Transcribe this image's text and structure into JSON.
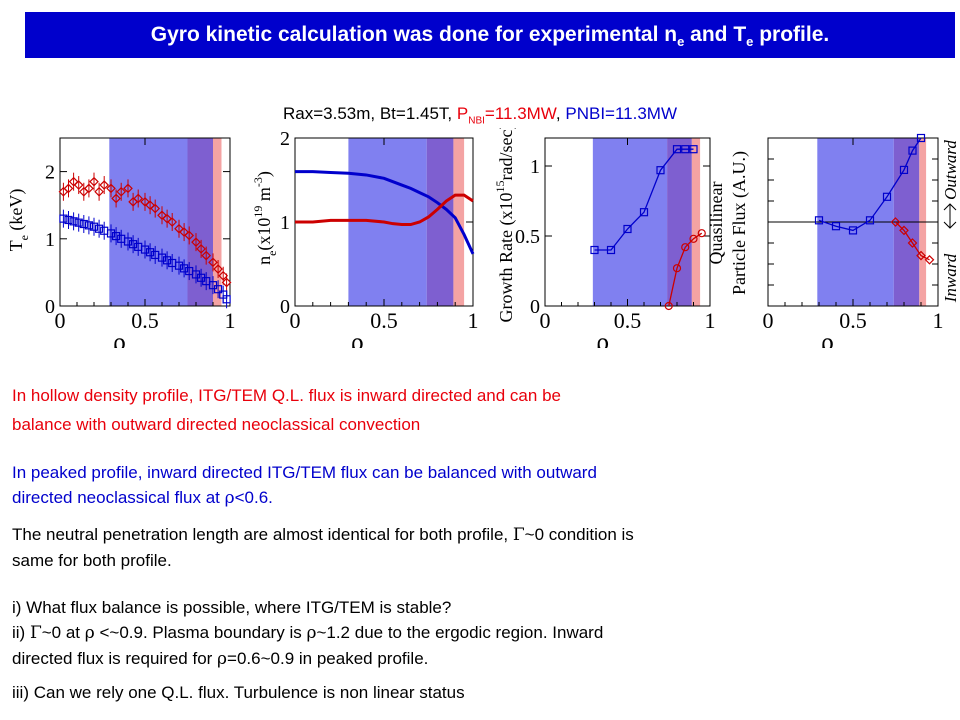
{
  "header": {
    "title_a": "Gyro kinetic calculation was done for  experimental n",
    "title_sub1": "e",
    "title_b": " and T",
    "title_sub2": "e",
    "title_c": " profile."
  },
  "subtitle": {
    "a": "Rax=3.53m, Bt=1.45T, ",
    "p": "P",
    "nbi": "NBI",
    "red_rest": "=11.3MW",
    "sep": ", ",
    "blue": "PNBI=11.3MW"
  },
  "colors": {
    "blue": "#0000cc",
    "red": "#cc0000",
    "band_blue": "#8080f0",
    "band_purple": "#7e5fd0",
    "band_pink": "#f4a3a3",
    "banner": "#0000cc"
  },
  "chart_data": [
    {
      "type": "scatter",
      "ylabel": "T",
      "ylabel_sub": "e",
      "ylabel_unit": " (keV)",
      "xlabel": "ρ",
      "xlim": [
        0,
        1
      ],
      "ylim": [
        0,
        2.5
      ],
      "xticks": [
        "0",
        "0.5",
        "1"
      ],
      "yticks": [
        "0",
        "1",
        "2"
      ],
      "series": [
        {
          "color": "#cc0000",
          "marker": "diamond",
          "x": [
            0.02,
            0.05,
            0.08,
            0.11,
            0.14,
            0.17,
            0.2,
            0.23,
            0.26,
            0.3,
            0.33,
            0.36,
            0.4,
            0.43,
            0.46,
            0.5,
            0.53,
            0.56,
            0.6,
            0.63,
            0.66,
            0.7,
            0.73,
            0.76,
            0.8,
            0.83,
            0.86,
            0.9,
            0.93,
            0.96,
            0.98
          ],
          "y": [
            1.7,
            1.75,
            1.85,
            1.8,
            1.7,
            1.75,
            1.85,
            1.7,
            1.8,
            1.75,
            1.6,
            1.7,
            1.75,
            1.55,
            1.6,
            1.55,
            1.5,
            1.45,
            1.35,
            1.3,
            1.25,
            1.15,
            1.1,
            1.05,
            0.95,
            0.85,
            0.75,
            0.65,
            0.55,
            0.45,
            0.35
          ]
        },
        {
          "color": "#0000cc",
          "marker": "square",
          "x": [
            0.02,
            0.05,
            0.08,
            0.11,
            0.14,
            0.17,
            0.2,
            0.23,
            0.26,
            0.3,
            0.33,
            0.36,
            0.4,
            0.43,
            0.46,
            0.5,
            0.53,
            0.56,
            0.6,
            0.63,
            0.66,
            0.7,
            0.73,
            0.76,
            0.8,
            0.83,
            0.86,
            0.9,
            0.93,
            0.96,
            0.98
          ],
          "y": [
            1.3,
            1.28,
            1.26,
            1.24,
            1.22,
            1.2,
            1.18,
            1.15,
            1.12,
            1.08,
            1.04,
            1.0,
            0.96,
            0.92,
            0.88,
            0.84,
            0.8,
            0.76,
            0.72,
            0.68,
            0.64,
            0.6,
            0.56,
            0.52,
            0.47,
            0.42,
            0.37,
            0.31,
            0.25,
            0.17,
            0.1
          ]
        }
      ]
    },
    {
      "type": "line",
      "ylabel": "n",
      "ylabel_sub": "e",
      "ylabel_unit": "(x10",
      "ylabel_sup": "19",
      "ylabel_unit2": " m",
      "ylabel_sup2": "-3",
      "ylabel_end": ")",
      "xlabel": "ρ",
      "xlim": [
        0,
        1
      ],
      "ylim": [
        0,
        2
      ],
      "xticks": [
        "0",
        "0.5",
        "1"
      ],
      "yticks": [
        "0",
        "1",
        "2"
      ],
      "series": [
        {
          "color": "#0000cc",
          "x": [
            0,
            0.1,
            0.2,
            0.3,
            0.4,
            0.5,
            0.55,
            0.6,
            0.65,
            0.7,
            0.75,
            0.8,
            0.85,
            0.9,
            0.95,
            1.0
          ],
          "y": [
            1.6,
            1.6,
            1.59,
            1.58,
            1.56,
            1.52,
            1.48,
            1.44,
            1.4,
            1.35,
            1.3,
            1.23,
            1.15,
            1.05,
            0.85,
            0.62
          ]
        },
        {
          "color": "#cc0000",
          "x": [
            0,
            0.1,
            0.2,
            0.3,
            0.4,
            0.5,
            0.55,
            0.6,
            0.65,
            0.7,
            0.75,
            0.8,
            0.85,
            0.9,
            0.95,
            1.0
          ],
          "y": [
            1.0,
            1.0,
            1.02,
            1.02,
            1.02,
            1.0,
            0.98,
            0.97,
            0.97,
            1.0,
            1.06,
            1.15,
            1.25,
            1.32,
            1.32,
            1.25
          ]
        }
      ]
    },
    {
      "type": "line",
      "ylabel": "Growth Rate (x10",
      "ylabel_sup": "15",
      "ylabel_end": "rad/sec)",
      "xlabel": "ρ",
      "xlim": [
        0,
        1
      ],
      "ylim": [
        0,
        1.2
      ],
      "xticks": [
        "0",
        "0.5",
        "1"
      ],
      "yticks": [
        "0",
        "0.5",
        "1"
      ],
      "series": [
        {
          "color": "#0000cc",
          "marker": "square",
          "x": [
            0.3,
            0.4,
            0.5,
            0.6,
            0.7,
            0.8,
            0.85,
            0.9
          ],
          "y": [
            0.4,
            0.4,
            0.55,
            0.67,
            0.97,
            1.12,
            1.12,
            1.12
          ]
        },
        {
          "color": "#cc0000",
          "marker": "circle",
          "x": [
            0.75,
            0.8,
            0.85,
            0.9,
            0.95
          ],
          "y": [
            0.0,
            0.27,
            0.42,
            0.48,
            0.52
          ]
        }
      ]
    },
    {
      "type": "line",
      "ylabel": "Quasilinear",
      "ylabel2": "Particle Flux (A.U.)",
      "ylabel_right_inward": "Inward",
      "ylabel_right_outward": "Outward",
      "xlabel": "ρ",
      "xlim": [
        0,
        1
      ],
      "ylim": [
        -1,
        1
      ],
      "xticks": [
        "0",
        "0.5",
        "1"
      ],
      "series": [
        {
          "color": "#0000cc",
          "marker": "square",
          "x": [
            0.3,
            0.4,
            0.5,
            0.6,
            0.7,
            0.8,
            0.85,
            0.9
          ],
          "y": [
            0.02,
            -0.05,
            -0.1,
            0.02,
            0.3,
            0.62,
            0.85,
            1.0
          ]
        },
        {
          "color": "#cc0000",
          "marker": "diamond",
          "x": [
            0.75,
            0.8,
            0.85,
            0.9,
            0.95
          ],
          "y": [
            0.0,
            -0.1,
            -0.25,
            -0.4,
            -0.45
          ]
        }
      ]
    }
  ],
  "paragraphs": {
    "p1_line1": "In hollow density profile,    ITG/TEM   Q.L. flux is inward directed and can be",
    "p1_line2": "balance with outward directed neoclassical convection",
    "p2_line1": "In peaked profile,  inward directed ITG/TEM flux can be balanced with outward",
    "p2_line2a": "directed neoclassical flux at ",
    "p2_rho": "ρ",
    "p2_line2b": "<0.6.",
    "p3_line1a": "The neutral penetration length are almost identical for both profile, ",
    "p3_gamma": "Γ",
    "p3_line1b": "~0 condition is",
    "p3_line2": "same for both profile.",
    "q1": "i) What flux balance is possible, where ITG/TEM is stable?",
    "q2a": "ii) ",
    "q2_gamma": "Γ",
    "q2b": "~0 at ",
    "q2_rho1": "ρ",
    "q2c": " <~0.9.  Plasma boundary is ",
    "q2_rho2": "ρ",
    "q2d": "~1.2 due to the ergodic region. Inward",
    "q2e": "directed flux is required for  ",
    "q2_rho3": "ρ",
    "q2f": "=0.6~0.9 in peaked profile.",
    "q3": "iii) Can we rely one Q.L. flux. Turbulence is non linear status"
  }
}
